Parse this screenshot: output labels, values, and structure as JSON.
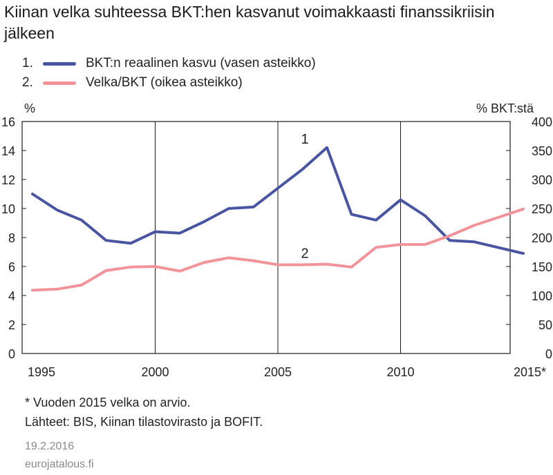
{
  "title": "Kiinan velka suhteessa BKT:hen kasvanut voimakkaasti finanssikriisin jälkeen",
  "legend": [
    {
      "num": "1.",
      "label": "BKT:n reaalinen kasvu (vasen asteikko)",
      "color": "#4a55a2"
    },
    {
      "num": "2.",
      "label": "Velka/BKT (oikea asteikko)",
      "color": "#f2939a"
    }
  ],
  "footnote": "* Vuoden 2015 velka on arvio.",
  "sources": "Lähteet: BIS, Kiinan tilastovirasto ja BOFIT.",
  "date": "19.2.2016",
  "site": "eurojatalous.fi",
  "chart_data": {
    "type": "line",
    "left_unit": "%",
    "right_unit": "% BKT:stä",
    "x_tick_labels": [
      "1995",
      "2000",
      "2005",
      "2010",
      "2015*"
    ],
    "left_ticks": [
      0,
      2,
      4,
      6,
      8,
      10,
      12,
      14,
      16
    ],
    "right_ticks": [
      0,
      50,
      100,
      150,
      200,
      250,
      300,
      350,
      400
    ],
    "ylim_left": [
      0,
      16
    ],
    "ylim_right": [
      0,
      400
    ],
    "xlim": [
      1995,
      2015
    ],
    "grid": "vertical at 2000, 2005, 2010",
    "x": [
      1995,
      1996,
      1997,
      1998,
      1999,
      2000,
      2001,
      2002,
      2003,
      2004,
      2005,
      2006,
      2007,
      2008,
      2009,
      2010,
      2011,
      2012,
      2013,
      2014,
      2015
    ],
    "series": [
      {
        "label": "1",
        "axis": "left",
        "color": "#4a55a2",
        "values": [
          11.0,
          9.9,
          9.2,
          7.8,
          7.6,
          8.4,
          8.3,
          9.1,
          10.0,
          10.1,
          11.4,
          12.7,
          14.2,
          9.6,
          9.2,
          10.6,
          9.5,
          7.8,
          7.7,
          7.3,
          6.9
        ]
      },
      {
        "label": "2",
        "axis": "right",
        "color": "#f2939a",
        "values": [
          109,
          111,
          118,
          143,
          149,
          150,
          142,
          157,
          165,
          160,
          153,
          153,
          154,
          149,
          183,
          188,
          188,
          203,
          221,
          235,
          249
        ]
      }
    ]
  }
}
